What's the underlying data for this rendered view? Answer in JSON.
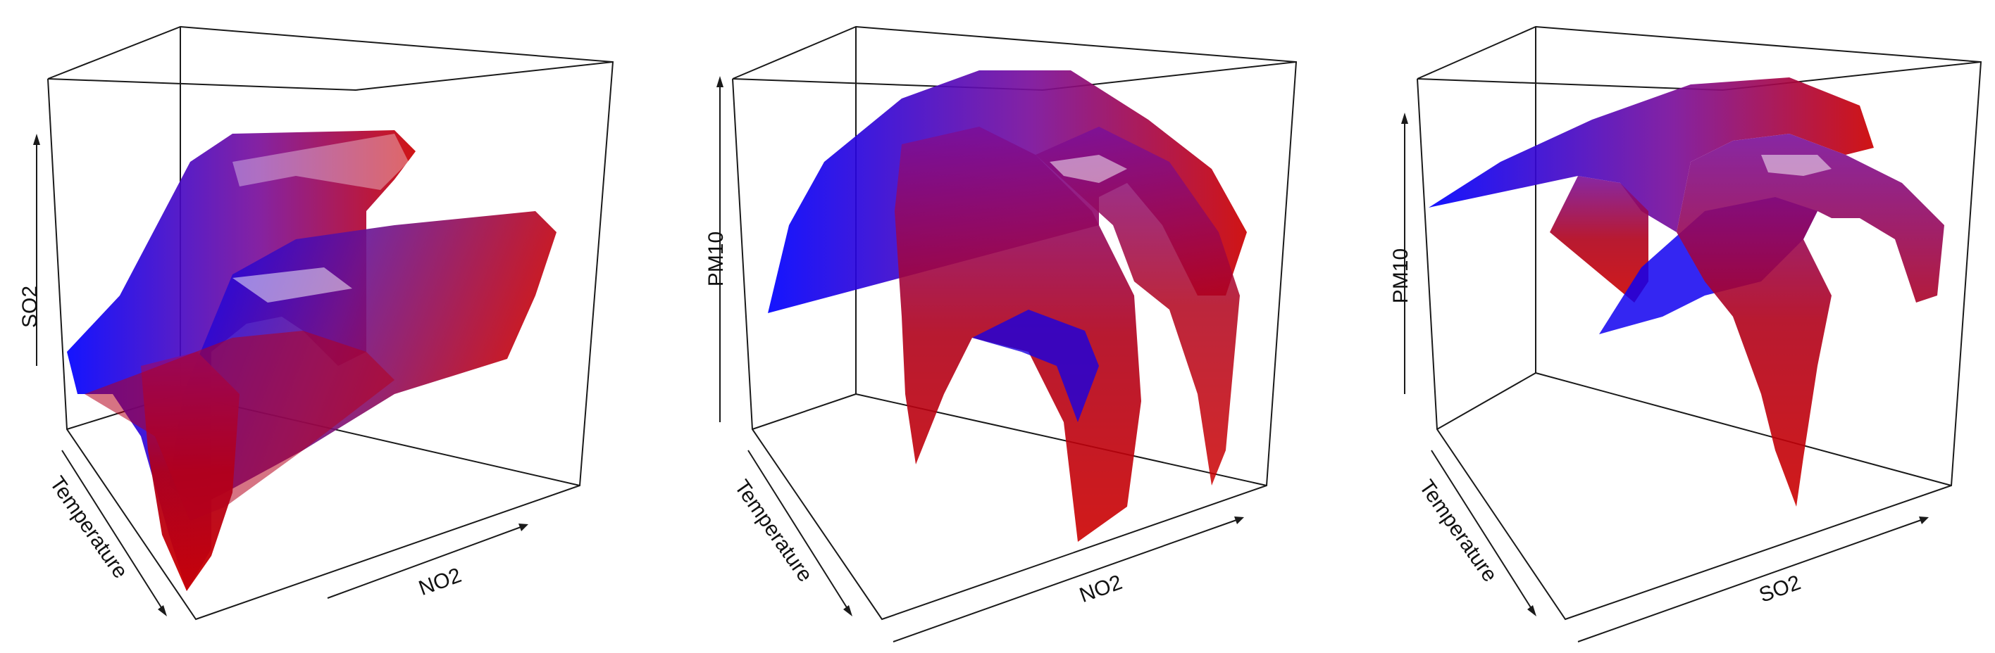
{
  "chart_data": [
    {
      "type": "surface",
      "xlabel": "Temperature",
      "ylabel": "NO2",
      "zlabel": "SO2",
      "colors": {
        "low": "#0000ff",
        "high": "#cc0000"
      }
    },
    {
      "type": "surface",
      "xlabel": "Temperature",
      "ylabel": "NO2",
      "zlabel": "PM10",
      "colors": {
        "low": "#0000ff",
        "high": "#cc0000"
      }
    },
    {
      "type": "surface",
      "xlabel": "Temperature",
      "ylabel": "SO2",
      "zlabel": "PM10",
      "colors": {
        "low": "#0000ff",
        "high": "#cc0000"
      }
    }
  ]
}
